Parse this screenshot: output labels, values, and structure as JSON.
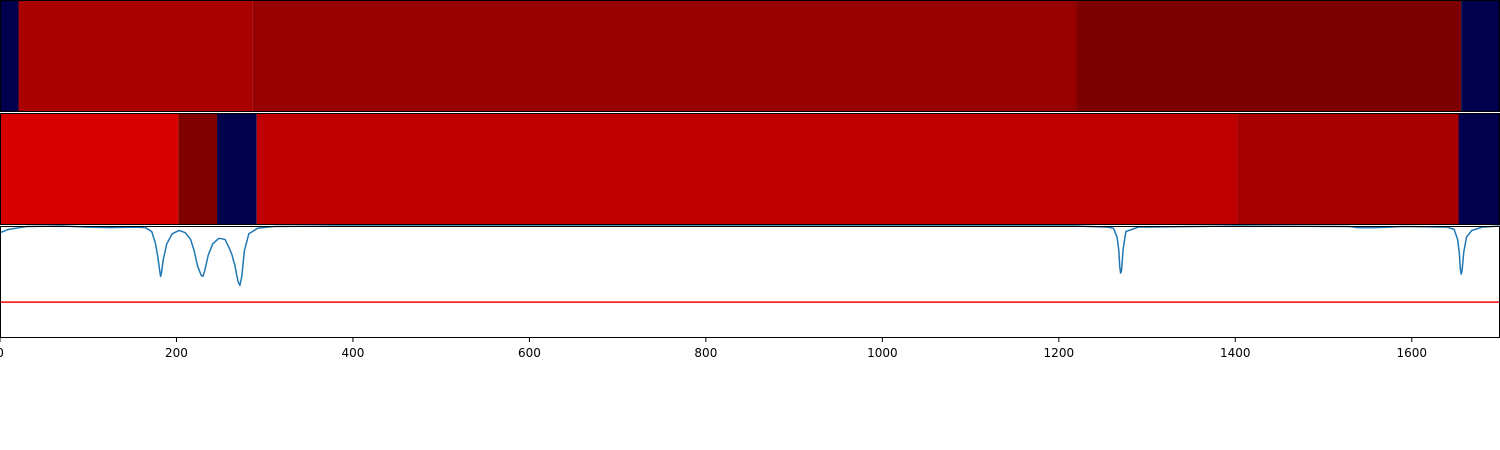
{
  "chart_data": [
    {
      "type": "heatmap",
      "panel": "track-1",
      "xlim": [
        0,
        1700
      ],
      "segments": [
        {
          "start": 0,
          "end": 21,
          "color": "#00004c"
        },
        {
          "start": 21,
          "end": 286,
          "color": "#a90000"
        },
        {
          "start": 286,
          "end": 1220,
          "color": "#960000"
        },
        {
          "start": 1220,
          "end": 1656,
          "color": "#7d0000"
        },
        {
          "start": 1656,
          "end": 1700,
          "color": "#00004c"
        }
      ]
    },
    {
      "type": "heatmap",
      "panel": "track-2",
      "xlim": [
        0,
        1700
      ],
      "segments": [
        {
          "start": 0,
          "end": 202,
          "color": "#d80000"
        },
        {
          "start": 202,
          "end": 246,
          "color": "#800000"
        },
        {
          "start": 246,
          "end": 291,
          "color": "#00004c"
        },
        {
          "start": 291,
          "end": 1402,
          "color": "#bf0000"
        },
        {
          "start": 1402,
          "end": 1653,
          "color": "#a70000"
        },
        {
          "start": 1653,
          "end": 1700,
          "color": "#00004c"
        }
      ]
    },
    {
      "type": "line",
      "panel": "signal",
      "xlim": [
        0,
        1700
      ],
      "ylim": [
        0,
        1
      ],
      "series": [
        {
          "color": "#1f77b4",
          "points": [
            [
              0,
              0.94
            ],
            [
              10,
              0.97
            ],
            [
              30,
              0.995
            ],
            [
              70,
              1.0
            ],
            [
              100,
              0.99
            ],
            [
              125,
              0.985
            ],
            [
              155,
              0.99
            ],
            [
              165,
              0.985
            ],
            [
              172,
              0.95
            ],
            [
              176,
              0.85
            ],
            [
              179,
              0.72
            ],
            [
              181,
              0.6
            ],
            [
              182,
              0.55
            ],
            [
              183,
              0.58
            ],
            [
              185,
              0.7
            ],
            [
              189,
              0.84
            ],
            [
              195,
              0.93
            ],
            [
              203,
              0.96
            ],
            [
              210,
              0.94
            ],
            [
              216,
              0.88
            ],
            [
              220,
              0.78
            ],
            [
              224,
              0.64
            ],
            [
              228,
              0.56
            ],
            [
              230,
              0.55
            ],
            [
              232,
              0.6
            ],
            [
              236,
              0.74
            ],
            [
              241,
              0.84
            ],
            [
              248,
              0.89
            ],
            [
              255,
              0.88
            ],
            [
              260,
              0.8
            ],
            [
              263,
              0.74
            ],
            [
              265,
              0.68
            ],
            [
              266,
              0.66
            ],
            [
              268,
              0.57
            ],
            [
              270,
              0.5
            ],
            [
              272,
              0.47
            ],
            [
              274,
              0.55
            ],
            [
              277,
              0.78
            ],
            [
              282,
              0.93
            ],
            [
              292,
              0.98
            ],
            [
              310,
              0.995
            ],
            [
              380,
              1.0
            ],
            [
              1220,
              1.0
            ],
            [
              1235,
              0.995
            ],
            [
              1255,
              0.99
            ],
            [
              1262,
              0.98
            ],
            [
              1266,
              0.9
            ],
            [
              1268,
              0.78
            ],
            [
              1269,
              0.64
            ],
            [
              1270,
              0.58
            ],
            [
              1271,
              0.6
            ],
            [
              1273,
              0.8
            ],
            [
              1276,
              0.95
            ],
            [
              1290,
              0.99
            ],
            [
              1400,
              1.0
            ],
            [
              1530,
              0.995
            ],
            [
              1538,
              0.985
            ],
            [
              1560,
              0.985
            ],
            [
              1575,
              0.99
            ],
            [
              1590,
              0.995
            ],
            [
              1640,
              0.99
            ],
            [
              1648,
              0.97
            ],
            [
              1652,
              0.88
            ],
            [
              1654,
              0.75
            ],
            [
              1655,
              0.62
            ],
            [
              1656,
              0.57
            ],
            [
              1657,
              0.6
            ],
            [
              1659,
              0.77
            ],
            [
              1662,
              0.9
            ],
            [
              1668,
              0.96
            ],
            [
              1680,
              0.99
            ],
            [
              1700,
              1.0
            ]
          ]
        },
        {
          "color": "#ff0000",
          "points": [
            [
              0,
              0.32
            ],
            [
              1700,
              0.32
            ]
          ]
        }
      ]
    }
  ],
  "x_axis": {
    "ticks": [
      0,
      200,
      400,
      600,
      800,
      1000,
      1200,
      1400,
      1600
    ],
    "tick_labels": [
      "0",
      "200",
      "400",
      "600",
      "800",
      "1000",
      "1200",
      "1400",
      "1600"
    ]
  }
}
